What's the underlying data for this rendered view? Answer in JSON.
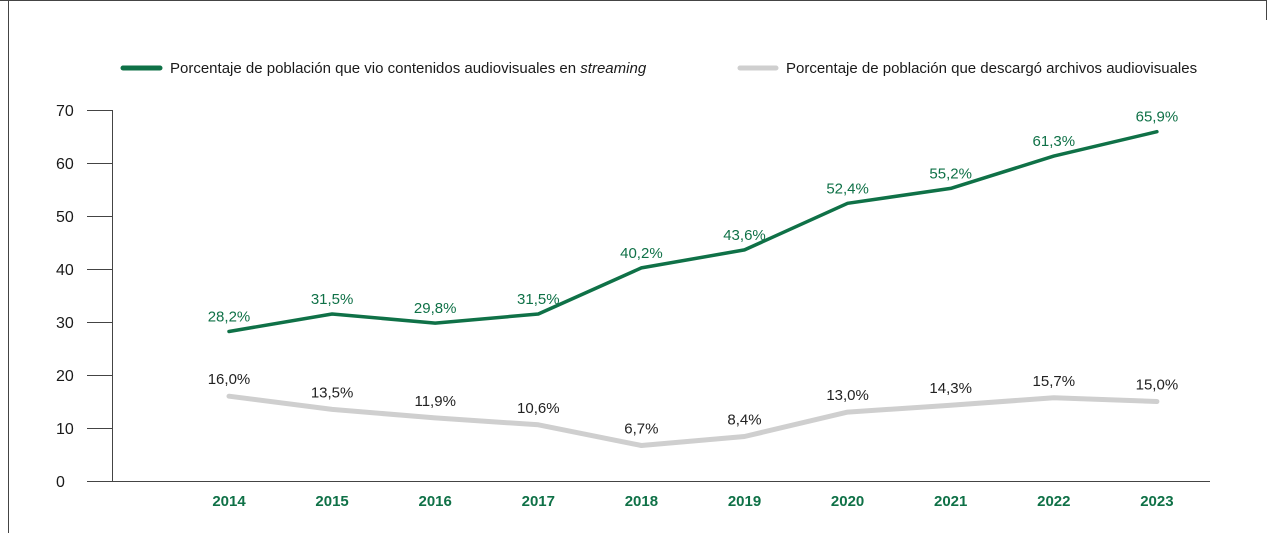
{
  "colors": {
    "streaming": "#0f7147",
    "downloads": "#cfcfcf",
    "axis": "#444444",
    "frame": "#444444"
  },
  "legend": {
    "streaming_prefix": "Porcentaje de población que vio contenidos audiovisuales en ",
    "streaming_italic": "streaming",
    "downloads": "Porcentaje de población que descargó archivos audiovisuales"
  },
  "chart_data": {
    "type": "line",
    "title": "",
    "xlabel": "",
    "ylabel": "",
    "categories": [
      "2014",
      "2015",
      "2016",
      "2017",
      "2018",
      "2019",
      "2020",
      "2021",
      "2022",
      "2023"
    ],
    "ylim": [
      0,
      70
    ],
    "yticks": [
      0,
      10,
      20,
      30,
      40,
      50,
      60,
      70
    ],
    "grid": false,
    "legend_position": "top",
    "series": [
      {
        "key": "streaming",
        "values": [
          28.2,
          31.5,
          29.8,
          31.5,
          40.2,
          43.6,
          52.4,
          55.2,
          61.3,
          65.9
        ],
        "labels": [
          "28,2%",
          "31,5%",
          "29,8%",
          "31,5%",
          "40,2%",
          "43,6%",
          "52,4%",
          "55,2%",
          "61,3%",
          "65,9%"
        ]
      },
      {
        "key": "downloads",
        "values": [
          16.0,
          13.5,
          11.9,
          10.6,
          6.7,
          8.4,
          13.0,
          14.3,
          15.7,
          15.0
        ],
        "labels": [
          "16,0%",
          "13,5%",
          "11,9%",
          "10,6%",
          "6,7%",
          "8,4%",
          "13,0%",
          "14,3%",
          "15,7%",
          "15,0%"
        ]
      }
    ]
  }
}
